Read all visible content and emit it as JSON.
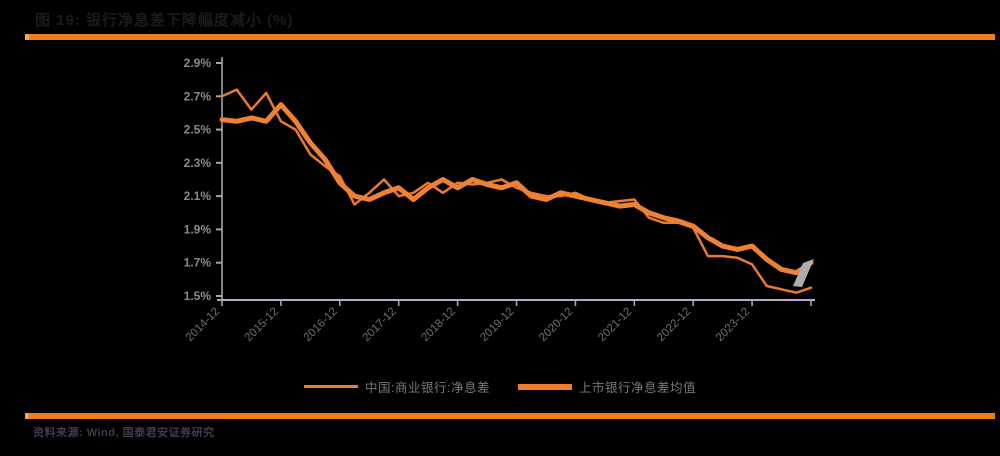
{
  "title": "图 19: 银行净息差下降幅度减小 (%)",
  "source": "资料来源: Wind, 国泰君安证券研究",
  "colors": {
    "accent_orange": "#EF7D1E",
    "line_thin_orange": "#E97A2E",
    "line_thick_orange": "#EF8134",
    "axis_vertical_gray": "#A6A6A6",
    "axis_horizontal_purple": "#B7A7C9",
    "y_label_gray": "#8A8A8A",
    "x_label_gray": "#6E6E6E",
    "arrow_gray": "#ADADAD"
  },
  "legend": [
    {
      "label": "中国:商业银行:净息差",
      "style": "thin"
    },
    {
      "label": "上市银行净息差均值",
      "style": "thick"
    }
  ],
  "chart_data": {
    "type": "line",
    "title": "银行净息差下降幅度减小 (%)",
    "xlabel": "",
    "ylabel": "",
    "ylim": [
      1.5,
      2.9
    ],
    "yticks": [
      "2.9%",
      "2.7%",
      "2.5%",
      "2.3%",
      "2.1%",
      "1.9%",
      "1.7%",
      "1.5%"
    ],
    "x_tick_labels": [
      "2014-12",
      "2015-12",
      "2016-12",
      "2017-12",
      "2018-12",
      "2019-12",
      "2020-12",
      "2021-12",
      "2022-12",
      "2023-12"
    ],
    "x": [
      "2014-12",
      "2015-03",
      "2015-06",
      "2015-09",
      "2015-12",
      "2016-03",
      "2016-06",
      "2016-09",
      "2016-12",
      "2017-03",
      "2017-06",
      "2017-09",
      "2017-12",
      "2018-03",
      "2018-06",
      "2018-09",
      "2018-12",
      "2019-03",
      "2019-06",
      "2019-09",
      "2019-12",
      "2020-03",
      "2020-06",
      "2020-09",
      "2020-12",
      "2021-03",
      "2021-06",
      "2021-09",
      "2021-12",
      "2022-03",
      "2022-06",
      "2022-09",
      "2022-12",
      "2023-03",
      "2023-06",
      "2023-09",
      "2023-12",
      "2024-03",
      "2024-06",
      "2024-09",
      "2024-12"
    ],
    "series": [
      {
        "name": "中国:商业银行:净息差",
        "color": "#E97A2E",
        "stroke_width": 2.5,
        "values": [
          2.7,
          2.74,
          2.62,
          2.72,
          2.55,
          2.5,
          2.35,
          2.28,
          2.22,
          2.05,
          2.12,
          2.2,
          2.1,
          2.12,
          2.18,
          2.12,
          2.18,
          2.17,
          2.18,
          2.2,
          2.15,
          2.12,
          2.1,
          2.1,
          2.12,
          2.08,
          2.06,
          2.07,
          2.08,
          1.97,
          1.94,
          1.94,
          1.91,
          1.74,
          1.74,
          1.73,
          1.69,
          1.56,
          1.54,
          1.52,
          1.55
        ]
      },
      {
        "name": "上市银行净息差均值",
        "color": "#EF8134",
        "stroke_width": 5,
        "values": [
          2.56,
          2.55,
          2.57,
          2.55,
          2.65,
          2.55,
          2.42,
          2.32,
          2.18,
          2.1,
          2.08,
          2.12,
          2.15,
          2.08,
          2.15,
          2.2,
          2.15,
          2.2,
          2.17,
          2.15,
          2.18,
          2.1,
          2.08,
          2.12,
          2.1,
          2.08,
          2.06,
          2.04,
          2.05,
          2.0,
          1.97,
          1.95,
          1.92,
          1.85,
          1.8,
          1.78,
          1.8,
          1.72,
          1.66,
          1.64,
          1.7
        ]
      }
    ],
    "annotation": "灰色上行箭头标注曲线末端的回升",
    "legend_position": "bottom",
    "grid": false
  }
}
